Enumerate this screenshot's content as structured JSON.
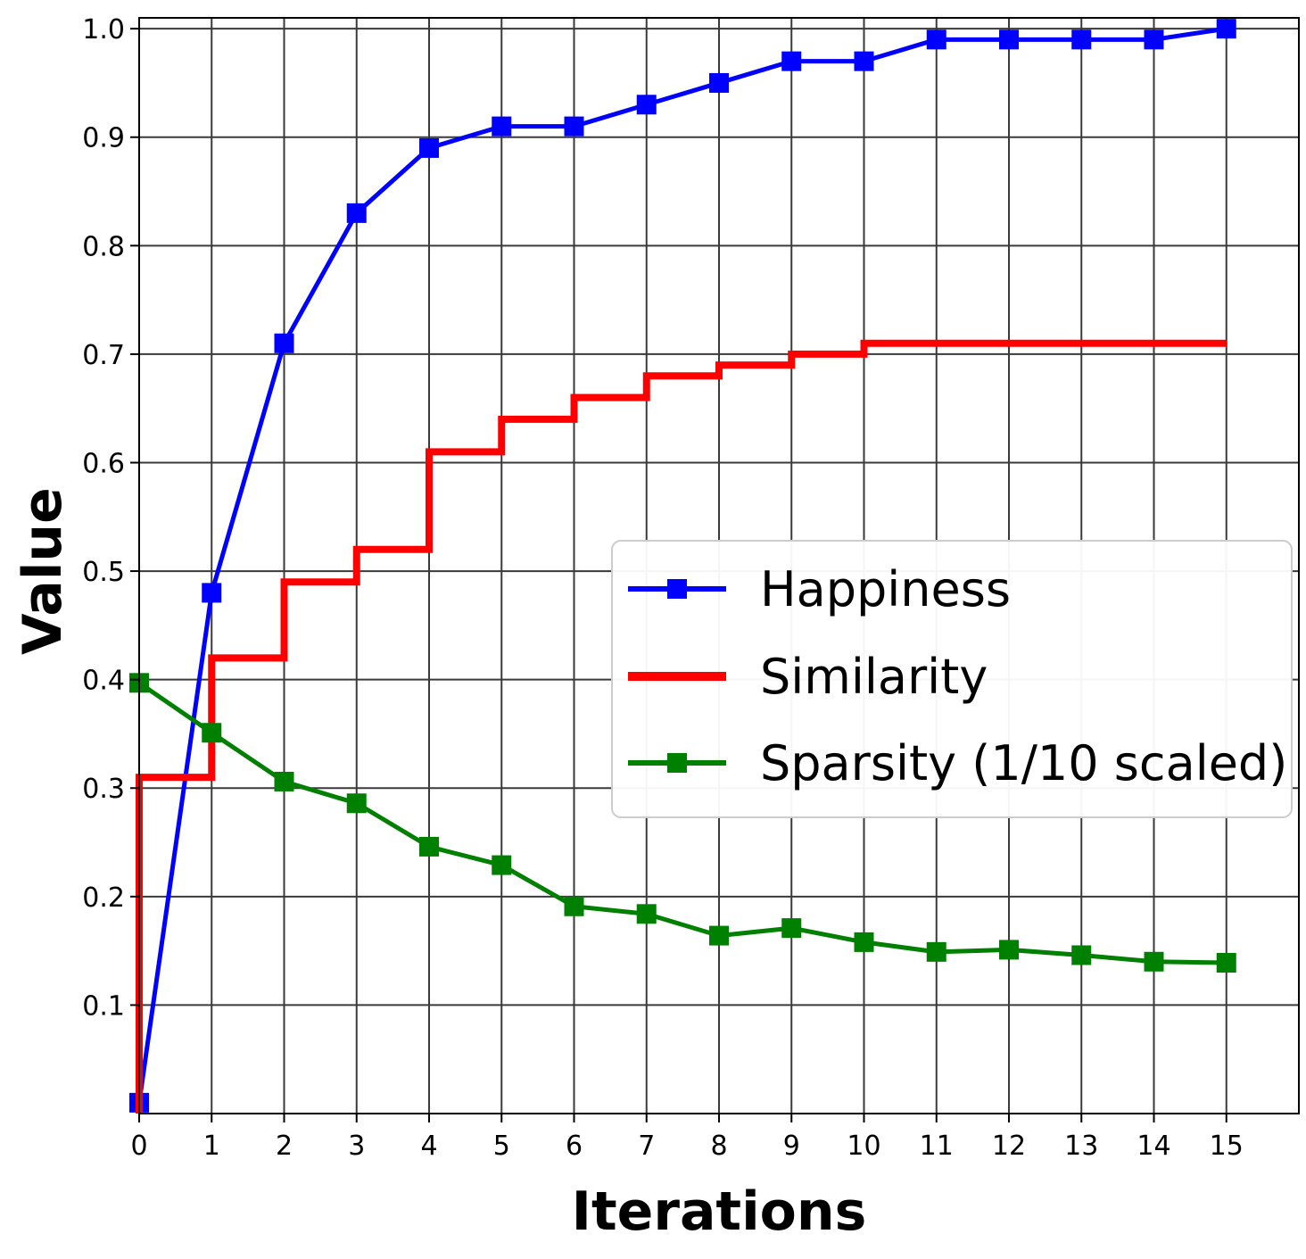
{
  "chart_data": {
    "type": "line",
    "xlabel": "Iterations",
    "ylabel": "Value",
    "xlim": [
      0,
      16
    ],
    "ylim": [
      0,
      1.01
    ],
    "x_ticks": [
      0,
      1,
      2,
      3,
      4,
      5,
      6,
      7,
      8,
      9,
      10,
      11,
      12,
      13,
      14,
      15
    ],
    "x_tick_labels": [
      "0",
      "1",
      "2",
      "3",
      "4",
      "5",
      "6",
      "7",
      "8",
      "9",
      "10",
      "11",
      "12",
      "13",
      "14",
      "15"
    ],
    "y_ticks": [
      0.1,
      0.2,
      0.3,
      0.4,
      0.5,
      0.6,
      0.7,
      0.8,
      0.9,
      1.0
    ],
    "y_tick_labels": [
      "0.1",
      "0.2",
      "0.3",
      "0.4",
      "0.5",
      "0.6",
      "0.7",
      "0.8",
      "0.9",
      "1.0"
    ],
    "grid": true,
    "legend_position": "center-right",
    "x": [
      0,
      1,
      2,
      3,
      4,
      5,
      6,
      7,
      8,
      9,
      10,
      11,
      12,
      13,
      14,
      15
    ],
    "series": [
      {
        "name": "Happiness",
        "style": "line",
        "marker": "square",
        "color": "#0000ff",
        "values": [
          0.01,
          0.48,
          0.71,
          0.83,
          0.89,
          0.91,
          0.91,
          0.93,
          0.95,
          0.97,
          0.97,
          0.99,
          0.99,
          0.99,
          0.99,
          1.0
        ]
      },
      {
        "name": "Similarity",
        "style": "step",
        "marker": "none",
        "color": "#ff0000",
        "values": [
          0.0,
          0.31,
          0.42,
          0.49,
          0.52,
          0.61,
          0.64,
          0.66,
          0.68,
          0.69,
          0.7,
          0.71,
          0.71,
          0.71,
          0.71,
          0.71
        ]
      },
      {
        "name": "Sparsity (1/10 scaled)",
        "style": "line",
        "marker": "square",
        "color": "#008000",
        "values": [
          0.397,
          0.351,
          0.306,
          0.286,
          0.246,
          0.229,
          0.191,
          0.184,
          0.164,
          0.171,
          0.158,
          0.149,
          0.151,
          0.146,
          0.14,
          0.139
        ]
      }
    ]
  }
}
